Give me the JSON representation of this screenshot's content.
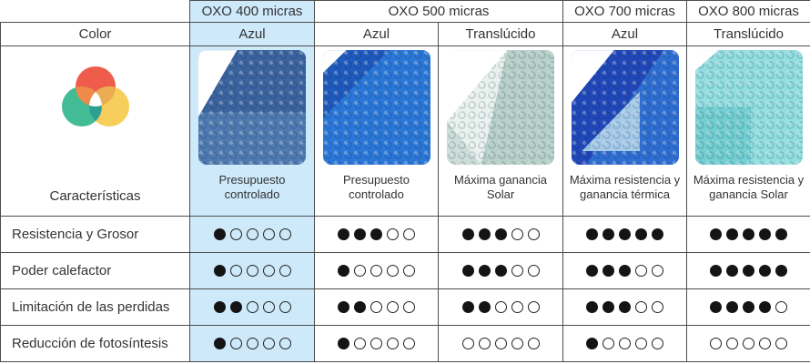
{
  "table": {
    "row_labels": {
      "color": "Color",
      "features": "Características",
      "ratings": [
        "Resistencia y Grosor",
        "Poder calefactor",
        "Limitación de las perdidas",
        "Reducción de fotosíntesis"
      ]
    },
    "groups": [
      {
        "label": "OXO 400 micras",
        "span": 1,
        "highlight": true
      },
      {
        "label": "OXO 500 micras",
        "span": 2,
        "highlight": false
      },
      {
        "label": "OXO 700 micras",
        "span": 1,
        "highlight": false
      },
      {
        "label": "OXO 800 micras",
        "span": 1,
        "highlight": false
      }
    ],
    "products": [
      {
        "id": "oxo-400-azul",
        "color": "Azul",
        "caption": "Presupuesto controlado",
        "highlight": true,
        "swatch": {
          "style": "azul-400",
          "base": "#4f7bb0",
          "fold": "#3c649e",
          "under": "",
          "corner": "#ffffff"
        }
      },
      {
        "id": "oxo-500-azul",
        "color": "Azul",
        "caption": "Presupuesto controlado",
        "highlight": false,
        "swatch": {
          "style": "azul-500",
          "base": "#2b78d8",
          "fold": "#1f5bbd",
          "under": "",
          "corner": "#ffffff"
        }
      },
      {
        "id": "oxo-500-translucido",
        "color": "Translúcido",
        "caption": "Máxima ganancia Solar",
        "highlight": false,
        "swatch": {
          "style": "transl-500",
          "base": "#ccdcd6",
          "fold": "#b7d0c8",
          "under": "#e9f2ed",
          "corner": "#ffffff"
        }
      },
      {
        "id": "oxo-700-azul",
        "color": "Azul",
        "caption": "Máxima resistencia y ganancia térmica",
        "highlight": false,
        "swatch": {
          "style": "azul-700",
          "base": "#2f6fd2",
          "fold": "#2148b9",
          "under": "#a6cbe8",
          "corner": "#ffffff"
        }
      },
      {
        "id": "oxo-800-translucido",
        "color": "Translúcido",
        "caption": "Máxima resistencia y ganancia Solar",
        "highlight": false,
        "swatch": {
          "style": "transl-800",
          "base": "#93dfe0",
          "fold": "#74cfd2",
          "under": "",
          "corner": "#ffffff"
        }
      }
    ],
    "ratings": {
      "max": 5,
      "rows": [
        {
          "label": "Resistencia y Grosor",
          "values": [
            1,
            3,
            3,
            5,
            5
          ]
        },
        {
          "label": "Poder calefactor",
          "values": [
            1,
            1,
            3,
            3,
            5
          ]
        },
        {
          "label": "Limitación de las perdidas",
          "values": [
            2,
            2,
            2,
            3,
            4
          ]
        },
        {
          "label": "Reducción de fotosíntesis",
          "values": [
            1,
            1,
            0,
            1,
            0
          ]
        }
      ]
    }
  },
  "venn": {
    "red": "#ef5c4b",
    "teal": "#43bc95",
    "yellow": "#f7ce5b",
    "red_teal": "#f18a49",
    "red_yellow": "#ecac51",
    "teal_yellow": "#2d9f90",
    "center": "#ffffff"
  },
  "colors": {
    "highlight_bg": "#cde9fa",
    "border": "#4d4d4d",
    "text": "#333333",
    "dot_filled": "#141414"
  },
  "chart_data": {
    "type": "table",
    "title": "OXO micras pool-cover comparison",
    "columns": [
      "OXO 400 micras – Azul",
      "OXO 500 micras – Azul",
      "OXO 500 micras – Translúcido",
      "OXO 700 micras – Azul",
      "OXO 800 micras – Translúcido"
    ],
    "rows": [
      {
        "label": "Características",
        "values": [
          "Presupuesto controlado",
          "Presupuesto controlado",
          "Máxima ganancia Solar",
          "Máxima resistencia y ganancia térmica",
          "Máxima resistencia y ganancia Solar"
        ]
      },
      {
        "label": "Resistencia y Grosor",
        "values": [
          1,
          3,
          3,
          5,
          5
        ],
        "max": 5
      },
      {
        "label": "Poder calefactor",
        "values": [
          1,
          1,
          3,
          3,
          5
        ],
        "max": 5
      },
      {
        "label": "Limitación de las perdidas",
        "values": [
          2,
          2,
          2,
          3,
          4
        ],
        "max": 5
      },
      {
        "label": "Reducción de fotosíntesis",
        "values": [
          1,
          1,
          0,
          1,
          0
        ],
        "max": 5
      }
    ]
  }
}
